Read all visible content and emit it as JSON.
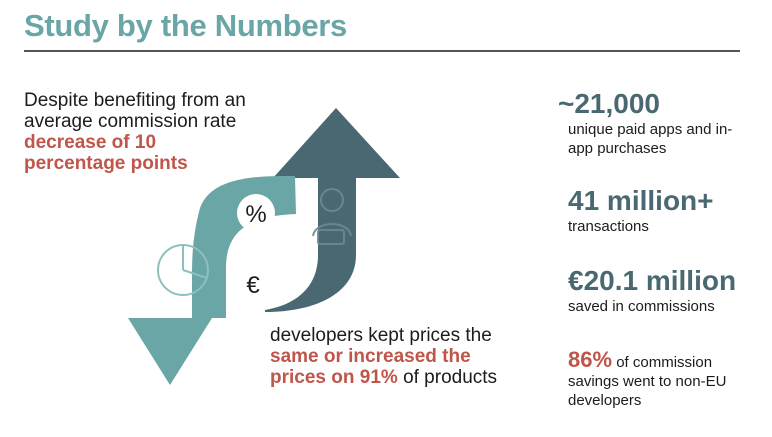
{
  "page": {
    "title": "Study by the Numbers"
  },
  "left": {
    "intro_text": "Despite benefiting from an average commission rate",
    "intro_highlight": "decrease of 10 percentage points",
    "outcome_text": "developers kept prices the",
    "outcome_highlight": "same or increased the prices on 91%",
    "outcome_tail": "of products"
  },
  "graphic": {
    "percent_symbol": "%",
    "euro_symbol": "€"
  },
  "stats": [
    {
      "value": "~21,000",
      "label": "unique paid apps and in-app purchases"
    },
    {
      "value": "41 million+",
      "label": "transactions"
    },
    {
      "value": "€20.1 million",
      "label": "saved in commissions"
    },
    {
      "value": "86%",
      "label": "of commission savings went to non-EU developers"
    }
  ],
  "colors": {
    "teal": "#6aa6a6",
    "slate": "#4a6871",
    "accent_red": "#c0554a"
  }
}
